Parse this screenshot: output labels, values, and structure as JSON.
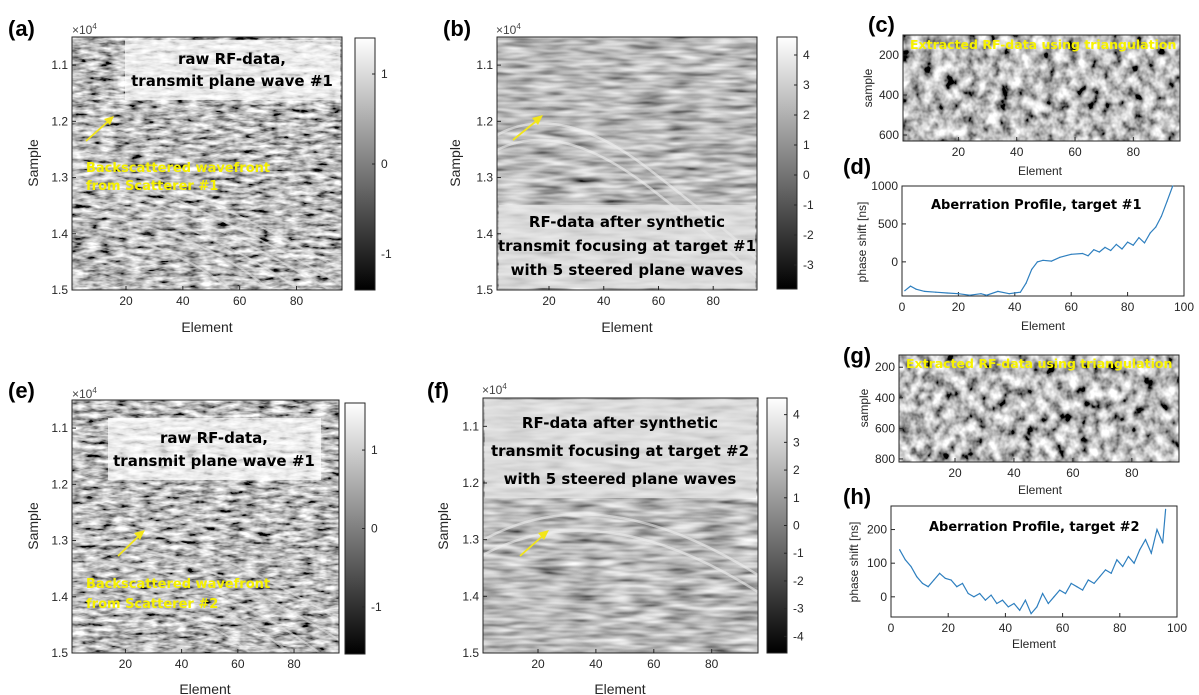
{
  "colors": {
    "annotation": "#f5f000",
    "line": "#2e7fbf",
    "arrow": "#f2e51a"
  },
  "panels": {
    "a": {
      "label": "(a)",
      "note": "raw RF-data, transmit plane wave #1",
      "annot1": "Backscattered wavefront",
      "annot2": "from Scatterer #1"
    },
    "b": {
      "label": "(b)",
      "box1": "RF-data after synthetic",
      "box2": "transmit focusing at target #1",
      "box3": "with 5 steered plane waves"
    },
    "c": {
      "label": "(c)",
      "title": "Extracted RF-data using triangulation"
    },
    "d": {
      "label": "(d)",
      "title": "Aberration Profile, target #1"
    },
    "e": {
      "label": "(e)",
      "note": "raw RF-data, transmit plane wave #1",
      "annot1": "Backscattered wavefront",
      "annot2": "from Scatterer #2"
    },
    "f": {
      "label": "(f)",
      "box1": "RF-data after synthetic",
      "box2": "transmit focusing at target #2",
      "box3": "with 5 steered plane waves"
    },
    "g": {
      "label": "(g)",
      "title": "Extracted RF-data using triangulation"
    },
    "h": {
      "label": "(h)",
      "title": "Aberration Profile, target #2"
    }
  },
  "chart_data": [
    {
      "panel": "a",
      "type": "heatmap",
      "xlabel": "Element",
      "ylabel": "Sample",
      "y_multiplier": "×10^4",
      "x_ticks": [
        20,
        40,
        60,
        80
      ],
      "y_ticks": [
        1.1,
        1.2,
        1.3,
        1.4,
        1.5
      ],
      "colorbar_ticks": [
        1,
        0,
        -1
      ]
    },
    {
      "panel": "b",
      "type": "heatmap",
      "xlabel": "Element",
      "ylabel": "Sample",
      "y_multiplier": "×10^4",
      "x_ticks": [
        20,
        40,
        60,
        80
      ],
      "y_ticks": [
        1.1,
        1.2,
        1.3,
        1.4,
        1.5
      ],
      "colorbar_ticks": [
        4,
        3,
        2,
        1,
        0,
        -1,
        -2,
        -3
      ]
    },
    {
      "panel": "c",
      "type": "heatmap",
      "xlabel": "Element",
      "ylabel": "sample",
      "x_ticks": [
        20,
        40,
        60,
        80
      ],
      "y_ticks": [
        200,
        400,
        600
      ]
    },
    {
      "panel": "d",
      "type": "line",
      "xlabel": "Element",
      "ylabel": "phase shift [ns]",
      "xlim": [
        0,
        100
      ],
      "ylim": [
        -450,
        1000
      ],
      "x_ticks": [
        0,
        20,
        40,
        60,
        80,
        100
      ],
      "y_ticks": [
        1000,
        500,
        0
      ],
      "x": [
        1,
        3,
        5,
        8,
        12,
        16,
        20,
        24,
        28,
        30,
        34,
        38,
        42,
        44,
        46,
        48,
        50,
        53,
        56,
        60,
        64,
        66,
        68,
        70,
        72,
        74,
        76,
        78,
        80,
        82,
        84,
        86,
        88,
        90,
        92,
        94,
        96
      ],
      "y": [
        -380,
        -320,
        -360,
        -390,
        -400,
        -410,
        -420,
        -440,
        -420,
        -440,
        -390,
        -420,
        -400,
        -280,
        -100,
        0,
        20,
        10,
        60,
        100,
        110,
        80,
        160,
        130,
        190,
        150,
        230,
        170,
        260,
        220,
        320,
        250,
        380,
        460,
        600,
        800,
        1000
      ]
    },
    {
      "panel": "e",
      "type": "heatmap",
      "xlabel": "Element",
      "ylabel": "Sample",
      "y_multiplier": "×10^4",
      "x_ticks": [
        20,
        40,
        60,
        80
      ],
      "y_ticks": [
        1.1,
        1.2,
        1.3,
        1.4,
        1.5
      ],
      "colorbar_ticks": [
        1,
        0,
        -1
      ]
    },
    {
      "panel": "f",
      "type": "heatmap",
      "xlabel": "Element",
      "ylabel": "Sample",
      "y_multiplier": "×10^4",
      "x_ticks": [
        20,
        40,
        60,
        80
      ],
      "y_ticks": [
        1.1,
        1.2,
        1.3,
        1.4,
        1.5
      ],
      "colorbar_ticks": [
        4,
        3,
        2,
        1,
        0,
        -1,
        -2,
        -3,
        -4
      ]
    },
    {
      "panel": "g",
      "type": "heatmap",
      "xlabel": "Element",
      "ylabel": "sample",
      "x_ticks": [
        20,
        40,
        60,
        80
      ],
      "y_ticks": [
        200,
        400,
        600,
        800
      ]
    },
    {
      "panel": "h",
      "type": "line",
      "xlabel": "Element",
      "ylabel": "phase shift [ns]",
      "xlim": [
        0,
        100
      ],
      "ylim": [
        -60,
        260
      ],
      "x_ticks": [
        0,
        20,
        40,
        60,
        80,
        100
      ],
      "y_ticks": [
        200,
        100,
        0
      ],
      "x": [
        3,
        5,
        7,
        9,
        11,
        13,
        15,
        17,
        19,
        21,
        23,
        25,
        27,
        29,
        31,
        33,
        35,
        37,
        39,
        41,
        43,
        45,
        47,
        49,
        51,
        53,
        55,
        57,
        59,
        61,
        63,
        65,
        67,
        69,
        71,
        73,
        75,
        77,
        79,
        81,
        83,
        85,
        87,
        89,
        91,
        93,
        95,
        96
      ],
      "y": [
        140,
        110,
        90,
        60,
        40,
        30,
        50,
        70,
        55,
        50,
        30,
        40,
        10,
        0,
        10,
        -10,
        5,
        -20,
        -10,
        -30,
        -20,
        -40,
        -10,
        -50,
        -30,
        10,
        -20,
        0,
        20,
        10,
        40,
        30,
        20,
        50,
        40,
        60,
        80,
        70,
        110,
        90,
        120,
        100,
        140,
        170,
        130,
        200,
        160,
        260
      ]
    }
  ]
}
